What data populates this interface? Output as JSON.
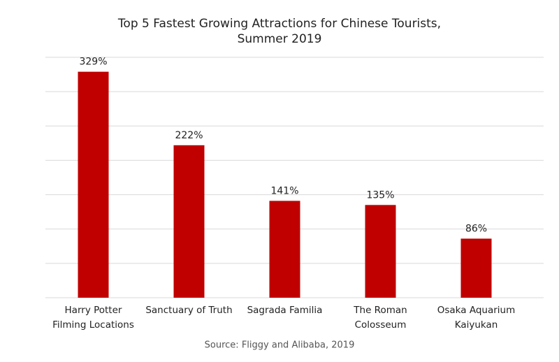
{
  "chart_data": {
    "type": "bar",
    "title": "Top 5 Fastest Growing Attractions for Chinese Tourists,\nSummer 2019",
    "categories": [
      "Harry Potter\nFilming Locations",
      "Sanctuary of Truth",
      "Sagrada Familia",
      "The Roman\nColosseum",
      "Osaka Aquarium\nKaiyukan"
    ],
    "values": [
      329,
      222,
      141,
      135,
      86
    ],
    "value_labels": [
      "329%",
      "222%",
      "141%",
      "135%",
      "86%"
    ],
    "color": "#c00000",
    "ylim": [
      0,
      350
    ],
    "yticks": [
      0,
      50,
      100,
      150,
      200,
      250,
      300,
      350
    ],
    "grid": true,
    "source": "Source: Fliggy and Alibaba, 2019"
  }
}
